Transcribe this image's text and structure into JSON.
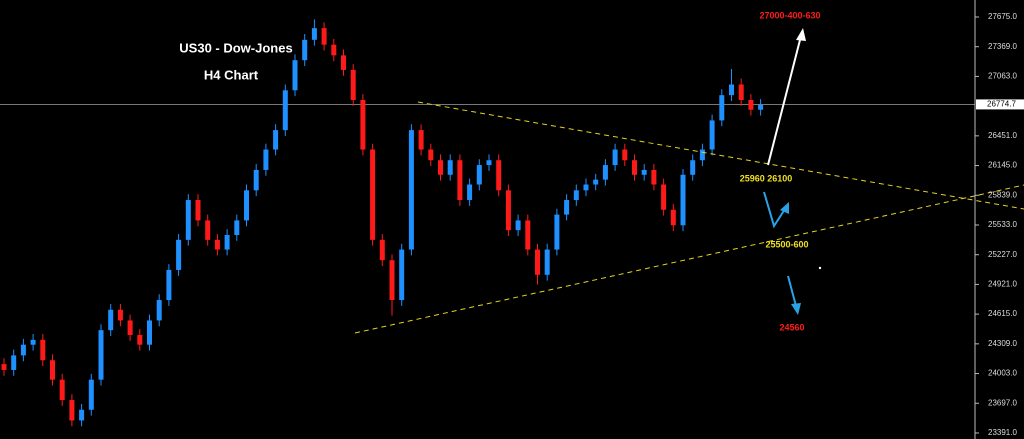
{
  "chart_data": {
    "type": "candlestick",
    "title": "US30 - Dow-Jones",
    "subtitle": "H4 Chart",
    "open": [
      24100,
      24040,
      24190,
      24300,
      24350,
      24140,
      23940,
      23730,
      23520,
      23630,
      23940,
      24450,
      24660,
      24550,
      24400,
      24300,
      24550,
      24760,
      25070,
      25380,
      25790,
      25580,
      25380,
      25280,
      25430,
      25580,
      25890,
      26100,
      26310,
      26510,
      26920,
      27230,
      27440,
      27560,
      27390,
      27280,
      27130,
      26820,
      26310,
      25380,
      25170,
      24760,
      25280,
      26510,
      26310,
      26200,
      26050,
      26200,
      25790,
      25950,
      26150,
      26200,
      25890,
      25480,
      25580,
      25280,
      25020,
      25280,
      25640,
      25790,
      25890,
      25950,
      26000,
      26150,
      26310,
      26200,
      26050,
      26100,
      25950,
      25690,
      25530,
      26050,
      26200,
      26310,
      26610,
      26870,
      26980,
      26820,
      26720
    ],
    "high": [
      24160,
      24250,
      24360,
      24410,
      24410,
      24200,
      24000,
      23790,
      23690,
      24000,
      24510,
      24720,
      24720,
      24610,
      24460,
      24610,
      24820,
      25130,
      25440,
      25850,
      25850,
      25640,
      25440,
      25490,
      25640,
      25950,
      26160,
      26370,
      26570,
      26980,
      27290,
      27500,
      27650,
      27620,
      27450,
      27340,
      27190,
      26880,
      26370,
      25440,
      25230,
      25340,
      26570,
      26570,
      26370,
      26260,
      26260,
      26260,
      26010,
      26210,
      26260,
      26260,
      25950,
      25640,
      25640,
      25340,
      25340,
      25700,
      25850,
      25950,
      26010,
      26060,
      26210,
      26370,
      26370,
      26260,
      26160,
      26160,
      26010,
      25750,
      26110,
      26260,
      26370,
      26670,
      26930,
      27140,
      27040,
      26880,
      26830
    ],
    "low": [
      23980,
      23980,
      24130,
      24240,
      24080,
      23880,
      23670,
      23460,
      23460,
      23570,
      23880,
      24390,
      24490,
      24340,
      24240,
      24240,
      24490,
      24700,
      25010,
      25320,
      25520,
      25320,
      25220,
      25220,
      25370,
      25520,
      25830,
      26040,
      26250,
      26450,
      26860,
      27170,
      27380,
      27330,
      27220,
      27070,
      26760,
      26250,
      25320,
      25110,
      24600,
      24700,
      25220,
      26250,
      26140,
      25990,
      25990,
      25730,
      25730,
      25890,
      26090,
      25830,
      25420,
      25420,
      25220,
      24920,
      24960,
      25220,
      25580,
      25730,
      25830,
      25890,
      25940,
      26090,
      26140,
      25990,
      25990,
      25890,
      25630,
      25470,
      25470,
      25990,
      26140,
      26250,
      26550,
      26810,
      26760,
      26660,
      26660
    ],
    "close": [
      24040,
      24190,
      24300,
      24350,
      24140,
      23940,
      23730,
      23520,
      23630,
      23940,
      24450,
      24660,
      24550,
      24400,
      24300,
      24550,
      24760,
      25070,
      25380,
      25790,
      25580,
      25380,
      25280,
      25430,
      25580,
      25890,
      26100,
      26310,
      26510,
      26920,
      27230,
      27440,
      27560,
      27390,
      27280,
      27130,
      26820,
      26310,
      25380,
      25170,
      24760,
      25280,
      26510,
      26310,
      26200,
      26050,
      26200,
      25790,
      25950,
      26150,
      26200,
      25890,
      25480,
      25580,
      25280,
      25020,
      25280,
      25640,
      25790,
      25890,
      25950,
      26000,
      26150,
      26310,
      26200,
      26050,
      26100,
      25950,
      25690,
      25530,
      26050,
      26200,
      26310,
      26610,
      26870,
      26980,
      26820,
      26720,
      26770
    ],
    "up_color": "#1e90ff",
    "down_color": "#ff1a1a",
    "ylim": [
      23329,
      27850
    ],
    "yticks": [
      {
        "value": 23391,
        "label": "23391.0"
      },
      {
        "value": 23697,
        "label": "23697.0"
      },
      {
        "value": 24003,
        "label": "24003.0"
      },
      {
        "value": 24309,
        "label": "24309.0"
      },
      {
        "value": 24615,
        "label": "24615.0"
      },
      {
        "value": 24921,
        "label": "24921.0"
      },
      {
        "value": 25227,
        "label": "25227.0"
      },
      {
        "value": 25533,
        "label": "25533.0"
      },
      {
        "value": 25839,
        "label": "25839.0"
      },
      {
        "value": 26145,
        "label": "26145.0"
      },
      {
        "value": 26451,
        "label": "26451.0"
      },
      {
        "value": 27063,
        "label": "27063.0"
      },
      {
        "value": 27369,
        "label": "27369.0"
      },
      {
        "value": 27675,
        "label": "27675.0"
      }
    ],
    "last_price": 26774.7,
    "annotations": [
      "27000-400-630",
      "25960 26100",
      "25500-600",
      "24560"
    ]
  }
}
